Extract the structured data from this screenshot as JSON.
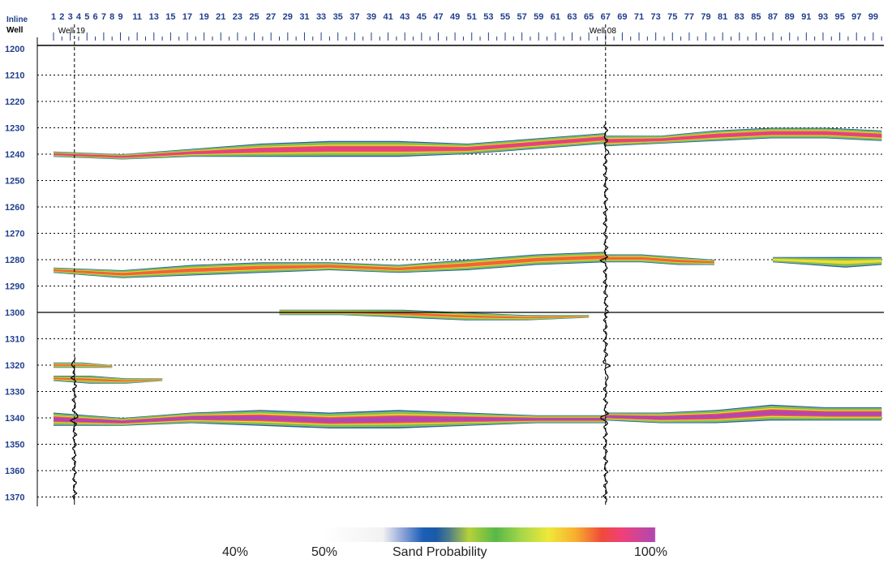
{
  "chart_data": {
    "type": "heatmap",
    "title": "",
    "x_header": "Inline",
    "y_header": "Well",
    "inline_tick_labels": [
      "1",
      "2",
      "3",
      "4",
      "5",
      "6",
      "7",
      "8",
      "9",
      "11",
      "13",
      "15",
      "17",
      "19",
      "21",
      "23",
      "25",
      "27",
      "29",
      "31",
      "33",
      "35",
      "37",
      "39",
      "41",
      "43",
      "45",
      "47",
      "49",
      "51",
      "53",
      "55",
      "57",
      "59",
      "61",
      "63",
      "65",
      "67",
      "69",
      "71",
      "73",
      "75",
      "77",
      "79",
      "81",
      "83",
      "85",
      "87",
      "89",
      "91",
      "93",
      "95",
      "97",
      "99"
    ],
    "xlim": [
      1,
      100
    ],
    "ylabel_ticks": [
      "1200",
      "1210",
      "1220",
      "1230",
      "1240",
      "1250",
      "1260",
      "1270",
      "1280",
      "1290",
      "1300",
      "1310",
      "1320",
      "1330",
      "1340",
      "1350",
      "1360",
      "1370"
    ],
    "ylim": [
      1200,
      1372
    ],
    "reference_depth": 1300,
    "wells": [
      {
        "name": "Well 19",
        "inline": 3.5
      },
      {
        "name": "Well 08",
        "inline": 67
      }
    ],
    "colorbar": {
      "label": "Sand Probability",
      "tick_labels": [
        "40%",
        "50%",
        "100%"
      ],
      "stops": [
        {
          "p": 0.0,
          "color": "#ffffff"
        },
        {
          "p": 0.18,
          "color": "#f2f2f2"
        },
        {
          "p": 0.24,
          "color": "#8ea4d8"
        },
        {
          "p": 0.3,
          "color": "#1d5fb8"
        },
        {
          "p": 0.34,
          "color": "#1a5aa8"
        },
        {
          "p": 0.38,
          "color": "#4e7d8a"
        },
        {
          "p": 0.44,
          "color": "#b6d23a"
        },
        {
          "p": 0.52,
          "color": "#58b848"
        },
        {
          "p": 0.6,
          "color": "#a8d84a"
        },
        {
          "p": 0.68,
          "color": "#f0e83a"
        },
        {
          "p": 0.76,
          "color": "#f8b030"
        },
        {
          "p": 0.84,
          "color": "#f04a3a"
        },
        {
          "p": 0.9,
          "color": "#f0407a"
        },
        {
          "p": 1.0,
          "color": "#b048b0"
        }
      ]
    },
    "bodies": [
      {
        "inline_start": 1,
        "inline_end": 67,
        "top": [
          1239,
          1240,
          1238,
          1236,
          1235,
          1235,
          1236,
          1234,
          1232
        ],
        "base": [
          1241,
          1242,
          1241,
          1241,
          1241,
          1241,
          1240,
          1238,
          1236
        ],
        "peak": 0.95
      },
      {
        "inline_start": 67,
        "inline_end": 100,
        "top": [
          1233,
          1233,
          1231,
          1230,
          1230,
          1231
        ],
        "base": [
          1237,
          1236,
          1235,
          1234,
          1234,
          1235
        ],
        "peak": 0.95
      },
      {
        "inline_start": 1,
        "inline_end": 67,
        "top": [
          1283,
          1284,
          1282,
          1281,
          1281,
          1282,
          1280,
          1278,
          1277
        ],
        "base": [
          1285,
          1287,
          1286,
          1285,
          1284,
          1285,
          1284,
          1282,
          1281
        ],
        "peak": 0.9
      },
      {
        "inline_start": 67,
        "inline_end": 80,
        "top": [
          1278,
          1278,
          1279,
          1280
        ],
        "base": [
          1281,
          1281,
          1282,
          1282
        ],
        "peak": 0.88
      },
      {
        "inline_start": 87,
        "inline_end": 100,
        "top": [
          1279,
          1279,
          1279,
          1279
        ],
        "base": [
          1281,
          1282,
          1283,
          1282
        ],
        "peak": 0.75
      },
      {
        "inline_start": 28,
        "inline_end": 65,
        "top": [
          1299,
          1299,
          1299,
          1300,
          1301,
          1301
        ],
        "base": [
          1301,
          1301,
          1302,
          1303,
          1303,
          1302
        ],
        "peak": 0.85
      },
      {
        "inline_start": 1,
        "inline_end": 8,
        "top": [
          1319,
          1319,
          1320
        ],
        "base": [
          1321,
          1321,
          1321
        ],
        "peak": 0.85
      },
      {
        "inline_start": 1,
        "inline_end": 14,
        "top": [
          1324,
          1324,
          1325,
          1325
        ],
        "base": [
          1326,
          1327,
          1327,
          1326
        ],
        "peak": 0.85
      },
      {
        "inline_start": 1,
        "inline_end": 67,
        "top": [
          1338,
          1340,
          1338,
          1337,
          1338,
          1337,
          1338,
          1339,
          1339
        ],
        "base": [
          1343,
          1343,
          1342,
          1343,
          1344,
          1344,
          1343,
          1342,
          1342
        ],
        "peak": 1.0
      },
      {
        "inline_start": 67,
        "inline_end": 100,
        "top": [
          1338,
          1338,
          1337,
          1335,
          1336,
          1336
        ],
        "base": [
          1341,
          1342,
          1342,
          1341,
          1341,
          1341
        ],
        "peak": 1.0
      }
    ]
  }
}
